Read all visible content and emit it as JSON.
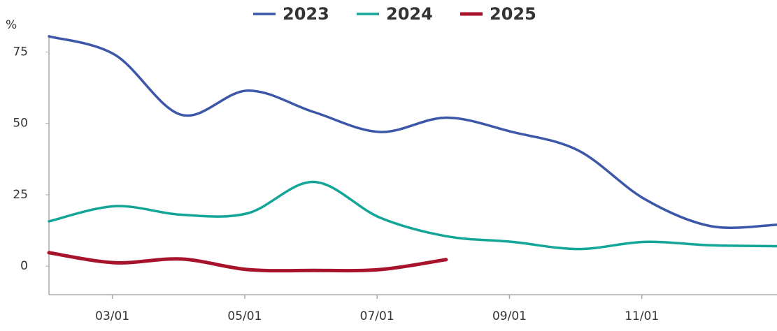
{
  "chart_data": {
    "type": "line",
    "y_label": "%",
    "categories": [
      null,
      "03/01",
      null,
      "05/01",
      null,
      "07/01",
      null,
      "09/01",
      null,
      "11/01",
      null,
      null
    ],
    "series": [
      {
        "name": "2023",
        "color": "#3d57a8",
        "values": [
          80.5,
          74,
          53,
          61.5,
          54,
          47,
          52,
          47,
          40.5,
          23.5,
          14,
          14.5
        ]
      },
      {
        "name": "2024",
        "color": "#12a598",
        "values": [
          15.7,
          21,
          18,
          18.5,
          29.5,
          17,
          10.5,
          8.5,
          6,
          8.5,
          7.3,
          7
        ]
      },
      {
        "name": "2025",
        "color": "#a8132c",
        "values": [
          4.7,
          1.2,
          2.5,
          -1.2,
          -1.5,
          -1.2,
          2.3,
          null,
          null,
          null,
          null,
          null
        ]
      }
    ],
    "ylim": [
      -10,
      81
    ],
    "yticks": [
      0,
      25,
      50,
      75
    ],
    "grid": false
  }
}
